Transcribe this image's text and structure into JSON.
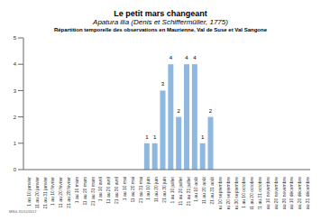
{
  "chart_data": {
    "type": "bar",
    "title": "Le petit mars changeant",
    "subtitle": "Apatura ilia (Denis et Schiffermüller, 1775)",
    "description": "Répartition temporelle des observations en Maurienne, Val de Suse et Val Sangone",
    "annotation": "MSG-31/12/2017",
    "categories": [
      "1 au 10 janvier",
      "11 au 20 janvier",
      "21 au 31 janvier",
      "1 au 10 février",
      "11 au 20 février",
      "21 au 28 février",
      "1 au 10 mars",
      "11 au 20 mars",
      "21 au 31 mars",
      "1 au 10 avril",
      "11 au 20 avril",
      "21 au 30 avril",
      "1 au 10 mai",
      "11 au 20 mai",
      "21 au 31 mai",
      "1 au 10 juin",
      "11 au 20 juin",
      "21 au 30 juin",
      "1 au 10 juillet",
      "11 au 20 juillet",
      "21 au 31 juillet",
      "1 au 10 août",
      "11 au 20 août",
      "21 au 31 août",
      "1 au 10 septembre",
      "11 au 20 septembre",
      "21 au 30 septembre",
      "1 au 10 octobre",
      "11 au 20 octobre",
      "21 au 31 octobre",
      "1 au 10 novembre",
      "11 au 20 novembre",
      "21 au 30 novembre",
      "1 au 10 décembre",
      "11 au 20 décembre",
      "21 au 31 décembre"
    ],
    "values": [
      0,
      0,
      0,
      0,
      0,
      0,
      0,
      0,
      0,
      0,
      0,
      0,
      0,
      0,
      0,
      1,
      1,
      3,
      4,
      2,
      4,
      4,
      1,
      2,
      0,
      0,
      0,
      0,
      0,
      0,
      0,
      0,
      0,
      0,
      0,
      0
    ],
    "color": "#8fb8e0",
    "ylim": [
      0,
      5
    ],
    "yticks": [
      0,
      1,
      2,
      3,
      4,
      5
    ],
    "grid": false,
    "data_labels": true
  }
}
